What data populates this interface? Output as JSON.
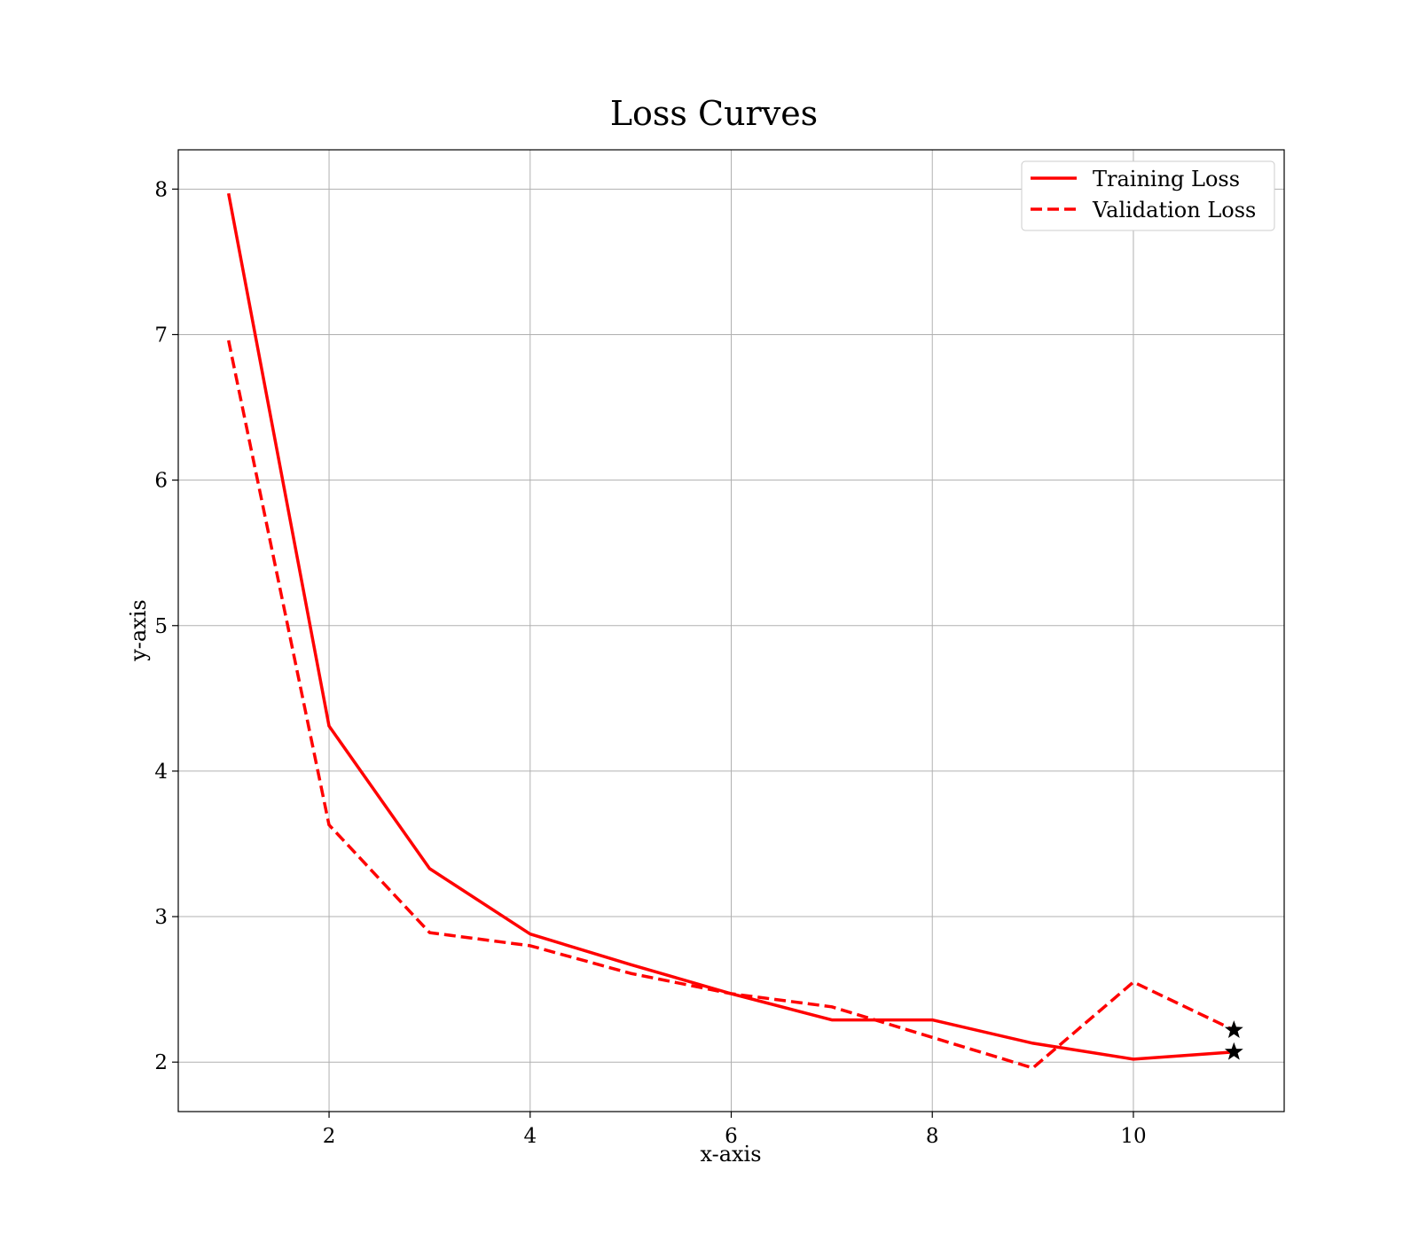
{
  "chart_data": {
    "type": "line",
    "title": "Loss Curves",
    "xlabel": "x-axis",
    "ylabel": "y-axis",
    "xlim": [
      0.5,
      11.5
    ],
    "ylim": [
      1.66,
      8.27
    ],
    "xticks": [
      2,
      4,
      6,
      8,
      10
    ],
    "yticks": [
      2,
      3,
      4,
      5,
      6,
      7,
      8
    ],
    "grid": true,
    "legend_position": "upper-right",
    "series": [
      {
        "name": "Training Loss",
        "color": "#ff0000",
        "line_style": "solid",
        "x": [
          1,
          2,
          3,
          4,
          5,
          6,
          7,
          8,
          9,
          10,
          11
        ],
        "y": [
          7.97,
          4.31,
          3.33,
          2.88,
          2.67,
          2.47,
          2.29,
          2.29,
          2.13,
          2.02,
          2.07
        ]
      },
      {
        "name": "Validation Loss",
        "color": "#ff0000",
        "line_style": "dashed",
        "x": [
          1,
          2,
          3,
          4,
          5,
          6,
          7,
          8,
          9,
          10,
          11
        ],
        "y": [
          6.96,
          3.63,
          2.89,
          2.8,
          2.61,
          2.47,
          2.38,
          2.17,
          1.96,
          2.55,
          2.22
        ]
      }
    ],
    "markers": [
      {
        "series": "Training Loss",
        "x": 11,
        "y": 2.07,
        "shape": "star-icon",
        "color": "#000000"
      },
      {
        "series": "Validation Loss",
        "x": 11,
        "y": 2.22,
        "shape": "star-icon",
        "color": "#000000"
      }
    ]
  }
}
